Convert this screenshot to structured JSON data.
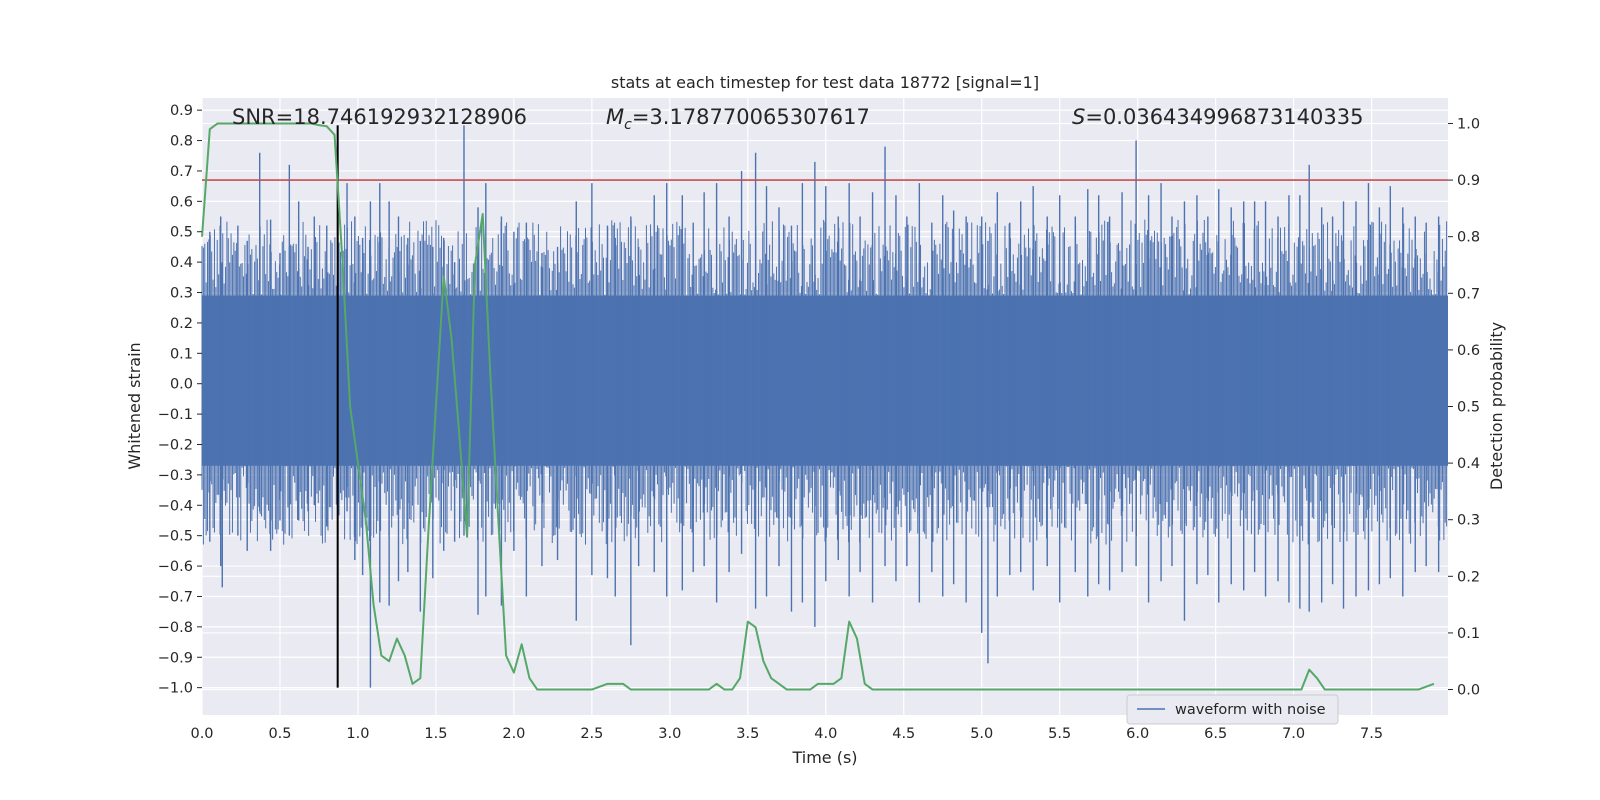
{
  "chart_data": {
    "type": "line",
    "title": "stats at each timestep for test data 18772 [signal=1]",
    "xlabel": "Time (s)",
    "ylabel": "Whitened strain",
    "y2label": "Detection probability",
    "xlim": [
      0.0,
      7.99
    ],
    "ylim": [
      -1.09,
      0.94
    ],
    "y2lim": [
      -0.045,
      1.045
    ],
    "xticks": [
      0.0,
      0.5,
      1.0,
      1.5,
      2.0,
      2.5,
      3.0,
      3.5,
      4.0,
      4.5,
      5.0,
      5.5,
      6.0,
      6.5,
      7.0,
      7.5
    ],
    "yticks": [
      0.9,
      0.8,
      0.7,
      0.6,
      0.5,
      0.4,
      0.3,
      0.2,
      0.1,
      0.0,
      -0.1,
      -0.2,
      -0.3,
      -0.4,
      -0.5,
      -0.6,
      -0.7,
      -0.8,
      -0.9,
      -1.0
    ],
    "y2ticks": [
      1.0,
      0.9,
      0.8,
      0.7,
      0.6,
      0.5,
      0.4,
      0.3,
      0.2,
      0.1,
      0.0
    ],
    "annotations": {
      "snr_label": "SNR=18.746192932128906",
      "mc_symbol": "M",
      "mc_sub": "c",
      "mc_value": "=3.178770065307617",
      "s_symbol": "S",
      "s_value": "=0.036434996873140335"
    },
    "threshold": {
      "probability": 0.9,
      "color": "#c44e52"
    },
    "event_marker": {
      "x": 0.87,
      "y_from": -1.0,
      "y_to": 0.85,
      "color": "#000000"
    },
    "series": [
      {
        "name": "waveform with noise",
        "color": "#4c72b0",
        "axis": "left",
        "noise_band": {
          "lower": -0.27,
          "upper": 0.29
        },
        "peaks": [
          [
            0.05,
            0.5,
            -0.52
          ],
          [
            0.12,
            0.55,
            -0.6
          ],
          [
            0.13,
            0.4,
            -0.67
          ],
          [
            0.23,
            0.52,
            -0.5
          ],
          [
            0.29,
            0.47,
            -0.55
          ],
          [
            0.37,
            0.76,
            -0.42
          ],
          [
            0.44,
            0.54,
            -0.55
          ],
          [
            0.5,
            0.43,
            -0.45
          ],
          [
            0.56,
            0.72,
            -0.5
          ],
          [
            0.62,
            0.6,
            -0.45
          ],
          [
            0.68,
            0.45,
            -0.42
          ],
          [
            0.72,
            0.55,
            -0.4
          ],
          [
            0.8,
            0.52,
            -0.47
          ],
          [
            0.87,
            0.85,
            -0.48
          ],
          [
            0.93,
            0.66,
            -0.42
          ],
          [
            0.98,
            0.55,
            -0.58
          ],
          [
            1.03,
            0.48,
            -0.63
          ],
          [
            1.08,
            0.6,
            -1.0
          ],
          [
            1.14,
            0.66,
            -0.72
          ],
          [
            1.2,
            0.6,
            -0.73
          ],
          [
            1.26,
            0.55,
            -0.65
          ],
          [
            1.32,
            0.48,
            -0.62
          ],
          [
            1.4,
            0.47,
            -0.75
          ],
          [
            1.48,
            0.45,
            -0.64
          ],
          [
            1.55,
            0.48,
            -0.55
          ],
          [
            1.62,
            0.4,
            -0.52
          ],
          [
            1.68,
            0.85,
            -0.5
          ],
          [
            1.77,
            0.58,
            -0.76
          ],
          [
            1.82,
            0.66,
            -0.7
          ],
          [
            1.92,
            0.55,
            -0.73
          ],
          [
            2.0,
            0.5,
            -0.55
          ],
          [
            2.08,
            0.53,
            -0.7
          ],
          [
            2.18,
            0.43,
            -0.6
          ],
          [
            2.28,
            0.45,
            -0.58
          ],
          [
            2.4,
            0.6,
            -0.78
          ],
          [
            2.5,
            0.66,
            -0.63
          ],
          [
            2.6,
            0.52,
            -0.64
          ],
          [
            2.65,
            0.48,
            -0.7
          ],
          [
            2.75,
            0.55,
            -0.86
          ],
          [
            2.8,
            0.45,
            -0.6
          ],
          [
            2.9,
            0.62,
            -0.62
          ],
          [
            2.98,
            0.66,
            -0.7
          ],
          [
            3.08,
            0.62,
            -0.68
          ],
          [
            3.15,
            0.53,
            -0.62
          ],
          [
            3.22,
            0.63,
            -0.6
          ],
          [
            3.3,
            0.66,
            -0.72
          ],
          [
            3.38,
            0.55,
            -0.62
          ],
          [
            3.46,
            0.7,
            -0.56
          ],
          [
            3.55,
            0.76,
            -0.74
          ],
          [
            3.62,
            0.65,
            -0.7
          ],
          [
            3.7,
            0.58,
            -0.6
          ],
          [
            3.78,
            0.52,
            -0.75
          ],
          [
            3.85,
            0.66,
            -0.72
          ],
          [
            3.93,
            0.73,
            -0.8
          ],
          [
            4.0,
            0.65,
            -0.65
          ],
          [
            4.08,
            0.55,
            -0.58
          ],
          [
            4.15,
            0.66,
            -0.7
          ],
          [
            4.22,
            0.55,
            -0.62
          ],
          [
            4.3,
            0.63,
            -0.72
          ],
          [
            4.38,
            0.78,
            -0.6
          ],
          [
            4.45,
            0.62,
            -0.65
          ],
          [
            4.52,
            0.55,
            -0.6
          ],
          [
            4.6,
            0.66,
            -0.72
          ],
          [
            4.68,
            0.53,
            -0.62
          ],
          [
            4.75,
            0.62,
            -0.7
          ],
          [
            4.82,
            0.57,
            -0.66
          ],
          [
            4.9,
            0.55,
            -0.72
          ],
          [
            5.0,
            0.55,
            -0.82
          ],
          [
            5.04,
            0.47,
            -0.92
          ],
          [
            5.1,
            0.63,
            -0.7
          ],
          [
            5.18,
            0.53,
            -0.63
          ],
          [
            5.25,
            0.6,
            -0.62
          ],
          [
            5.33,
            0.65,
            -0.68
          ],
          [
            5.42,
            0.55,
            -0.6
          ],
          [
            5.5,
            0.62,
            -0.72
          ],
          [
            5.6,
            0.55,
            -0.62
          ],
          [
            5.68,
            0.64,
            -0.7
          ],
          [
            5.75,
            0.62,
            -0.66
          ],
          [
            5.82,
            0.55,
            -0.68
          ],
          [
            5.9,
            0.63,
            -0.62
          ],
          [
            5.99,
            0.8,
            -0.6
          ],
          [
            6.07,
            0.62,
            -0.72
          ],
          [
            6.15,
            0.66,
            -0.65
          ],
          [
            6.22,
            0.55,
            -0.6
          ],
          [
            6.3,
            0.6,
            -0.78
          ],
          [
            6.38,
            0.62,
            -0.66
          ],
          [
            6.45,
            0.55,
            -0.63
          ],
          [
            6.52,
            0.64,
            -0.72
          ],
          [
            6.6,
            0.58,
            -0.66
          ],
          [
            6.68,
            0.6,
            -0.68
          ],
          [
            6.75,
            0.6,
            -0.62
          ],
          [
            6.82,
            0.6,
            -0.7
          ],
          [
            6.9,
            0.55,
            -0.65
          ],
          [
            6.97,
            0.62,
            -0.72
          ],
          [
            7.04,
            0.62,
            -0.74
          ],
          [
            7.1,
            0.72,
            -0.75
          ],
          [
            7.18,
            0.58,
            -0.72
          ],
          [
            7.25,
            0.55,
            -0.66
          ],
          [
            7.32,
            0.6,
            -0.74
          ],
          [
            7.4,
            0.6,
            -0.7
          ],
          [
            7.48,
            0.66,
            -0.68
          ],
          [
            7.55,
            0.58,
            -0.66
          ],
          [
            7.62,
            0.65,
            -0.64
          ],
          [
            7.7,
            0.58,
            -0.7
          ],
          [
            7.78,
            0.55,
            -0.62
          ],
          [
            7.85,
            0.53,
            -0.6
          ],
          [
            7.93,
            0.55,
            -0.62
          ]
        ]
      },
      {
        "name": "",
        "color": "#55a868",
        "axis": "right",
        "x": [
          0.0,
          0.05,
          0.1,
          0.15,
          0.2,
          0.25,
          0.3,
          0.35,
          0.4,
          0.45,
          0.5,
          0.55,
          0.6,
          0.65,
          0.7,
          0.75,
          0.8,
          0.85,
          0.9,
          0.95,
          1.0,
          1.05,
          1.1,
          1.15,
          1.2,
          1.25,
          1.3,
          1.35,
          1.4,
          1.45,
          1.5,
          1.55,
          1.6,
          1.65,
          1.7,
          1.75,
          1.8,
          1.85,
          1.9,
          1.95,
          2.0,
          2.05,
          2.1,
          2.15,
          2.2,
          2.25,
          2.3,
          2.4,
          2.5,
          2.6,
          2.7,
          2.75,
          2.8,
          2.9,
          3.0,
          3.1,
          3.2,
          3.25,
          3.3,
          3.35,
          3.4,
          3.45,
          3.5,
          3.55,
          3.6,
          3.65,
          3.7,
          3.75,
          3.8,
          3.85,
          3.9,
          3.95,
          4.0,
          4.05,
          4.1,
          4.15,
          4.2,
          4.25,
          4.3,
          4.35,
          4.4,
          4.5,
          4.6,
          4.8,
          5.0,
          5.2,
          5.5,
          5.8,
          6.0,
          6.2,
          6.5,
          6.7,
          6.9,
          7.0,
          7.05,
          7.1,
          7.15,
          7.2,
          7.25,
          7.3,
          7.35,
          7.4,
          7.5,
          7.6,
          7.7,
          7.8,
          7.9
        ],
        "values": [
          0.8,
          0.99,
          1.0,
          1.0,
          1.0,
          1.0,
          1.0,
          1.0,
          1.0,
          1.0,
          1.0,
          1.0,
          1.0,
          1.0,
          1.0,
          0.997,
          0.995,
          0.98,
          0.76,
          0.5,
          0.4,
          0.3,
          0.15,
          0.06,
          0.05,
          0.09,
          0.06,
          0.01,
          0.02,
          0.27,
          0.5,
          0.73,
          0.62,
          0.45,
          0.27,
          0.75,
          0.84,
          0.55,
          0.3,
          0.06,
          0.03,
          0.08,
          0.02,
          0.0,
          0.0,
          0.0,
          0.0,
          0.0,
          0.0,
          0.01,
          0.01,
          0.0,
          0.0,
          0.0,
          0.0,
          0.0,
          0.0,
          0.0,
          0.01,
          0.0,
          0.0,
          0.02,
          0.12,
          0.11,
          0.05,
          0.02,
          0.01,
          0.0,
          0.0,
          0.0,
          0.0,
          0.01,
          0.01,
          0.01,
          0.02,
          0.12,
          0.09,
          0.01,
          0.0,
          0.0,
          0.0,
          0.0,
          0.0,
          0.0,
          0.0,
          0.0,
          0.0,
          0.0,
          0.0,
          0.0,
          0.0,
          0.0,
          0.0,
          0.0,
          0.0,
          0.035,
          0.02,
          0.0,
          0.0,
          0.0,
          0.0,
          0.0,
          0.0,
          0.0,
          0.0,
          0.0,
          0.01
        ]
      }
    ],
    "legend": {
      "position": "lower-right",
      "entries": [
        "waveform with noise"
      ]
    },
    "grid": true
  }
}
